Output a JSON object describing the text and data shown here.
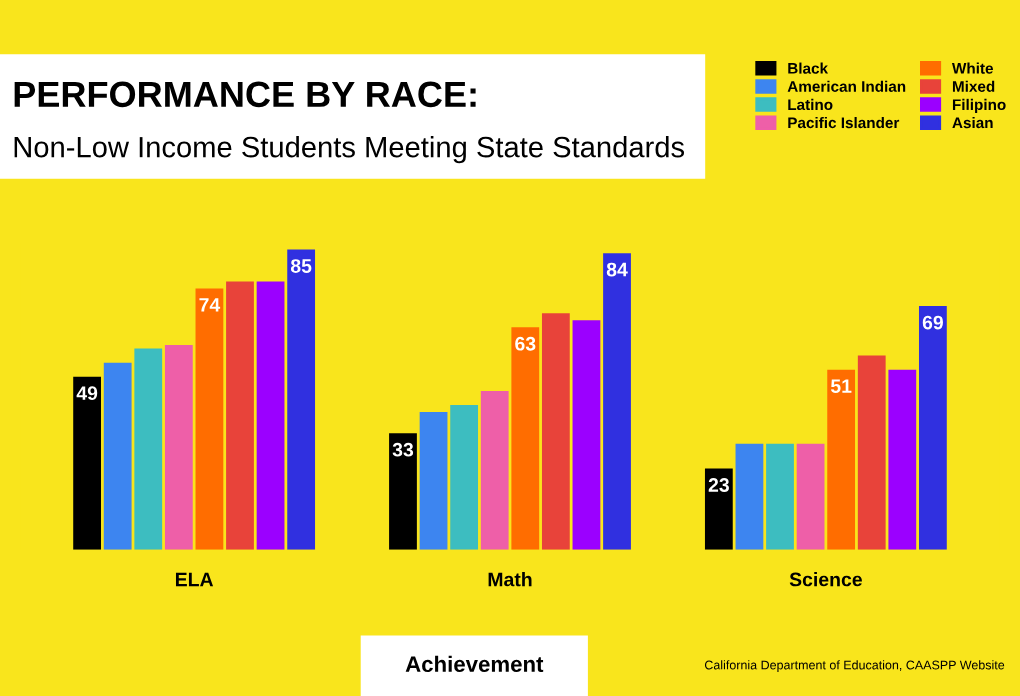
{
  "chart_data": {
    "type": "bar",
    "title": "PERFORMANCE BY RACE:",
    "subtitle": "Non-Low Income Students Meeting State Standards",
    "categories": [
      "ELA",
      "Math",
      "Science"
    ],
    "series": [
      {
        "name": "Black",
        "color": "#000000",
        "values": [
          49,
          33,
          23
        ],
        "value_labels": [
          "49",
          "33",
          "23"
        ]
      },
      {
        "name": "American Indian",
        "color": "#3d85f0",
        "values": [
          53,
          39,
          30
        ]
      },
      {
        "name": "Latino",
        "color": "#3dbdc0",
        "values": [
          57,
          41,
          30
        ]
      },
      {
        "name": "Pacific Islander",
        "color": "#ee5fa8",
        "values": [
          58,
          45,
          30
        ]
      },
      {
        "name": "White",
        "color": "#ff6d00",
        "values": [
          74,
          63,
          51
        ],
        "value_labels": [
          "74",
          "63",
          "51"
        ]
      },
      {
        "name": "Mixed",
        "color": "#e8433a",
        "values": [
          76,
          67,
          55
        ]
      },
      {
        "name": "Filipino",
        "color": "#9b00ff",
        "values": [
          76,
          65,
          51
        ]
      },
      {
        "name": "Asian",
        "color": "#3030e0",
        "values": [
          85,
          84,
          69
        ],
        "value_labels": [
          "85",
          "84",
          "69"
        ]
      }
    ],
    "legend": "top right",
    "annotations": [
      "Achievement",
      "California Department of Education, CAASPP Website"
    ]
  }
}
